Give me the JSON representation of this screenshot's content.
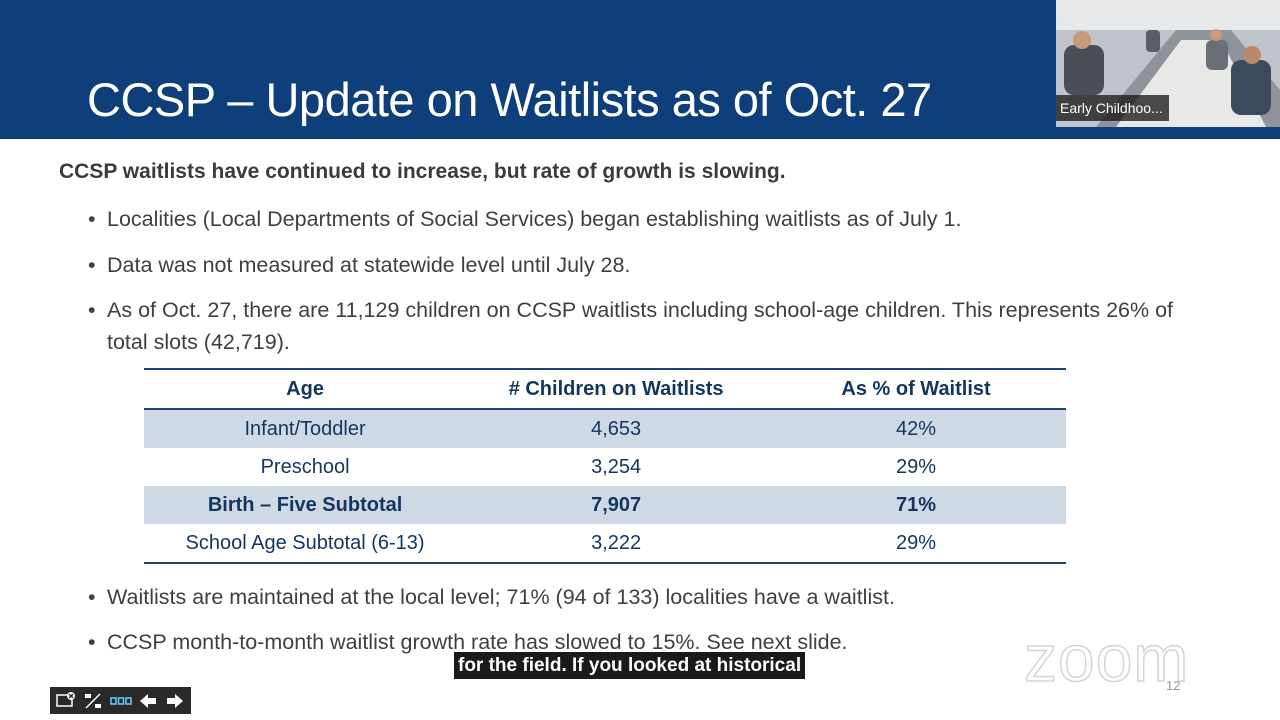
{
  "slide": {
    "title": "CCSP – Update on Waitlists as of Oct. 27",
    "lead": "CCSP waitlists have continued to increase, but rate of growth is slowing.",
    "bullets_top": [
      "Localities (Local Departments of Social Services) began establishing waitlists as of July 1.",
      "Data was not measured at statewide level until July 28.",
      "As of Oct. 27, there are 11,129 children on CCSP waitlists including school-age children. This represents 26% of total slots (42,719)."
    ],
    "table": {
      "headers": [
        "Age",
        "# Children on Waitlists",
        "As % of Waitlist"
      ],
      "rows": [
        [
          "Infant/Toddler",
          "4,653",
          "42%"
        ],
        [
          "Preschool",
          "3,254",
          "29%"
        ],
        [
          "Birth – Five Subtotal",
          "7,907",
          "71%"
        ],
        [
          "School Age Subtotal (6-13)",
          "3,222",
          "29%"
        ]
      ]
    },
    "bullets_bottom": [
      "Waitlists are maintained at the local level; 71% (94 of 133) localities have a waitlist.",
      "CCSP month-to-month waitlist growth rate has slowed to 15%. See next slide."
    ],
    "bullet_glyph": "•",
    "page_number": "12"
  },
  "meeting": {
    "participant_name": "Early Childhoo...",
    "caption": "for the field. If you looked at historical",
    "watermark": "zoom"
  },
  "toolbar": {
    "icons": [
      "screen-exit-icon",
      "slide-counter-icon",
      "grid-view-icon",
      "prev-arrow-icon",
      "next-arrow-icon"
    ]
  },
  "colors": {
    "header_bg": "#0e3f7a",
    "table_shade": "#cfd9e6",
    "table_text": "#13365f"
  }
}
